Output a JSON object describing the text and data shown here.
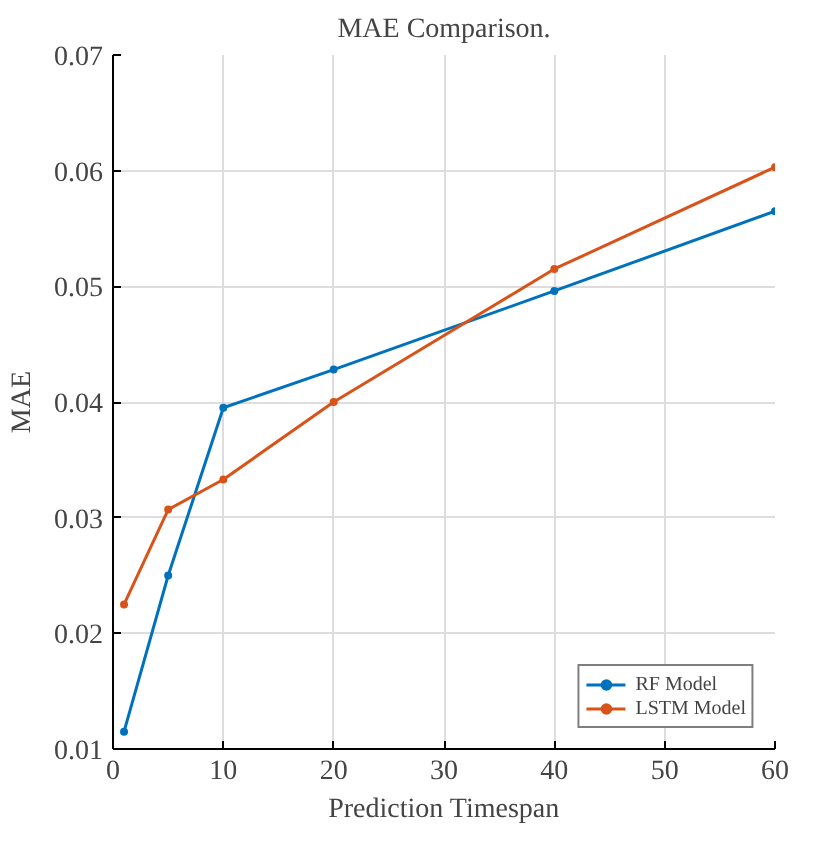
{
  "chart_data": {
    "type": "line",
    "title": "MAE Comparison.",
    "xlabel": "Prediction Timespan",
    "ylabel": "MAE",
    "x": [
      1,
      5,
      10,
      20,
      40,
      60
    ],
    "series": [
      {
        "name": "RF Model",
        "color": "#0072bd",
        "values": [
          0.0115,
          0.025,
          0.0395,
          0.0428,
          0.0496,
          0.0565
        ]
      },
      {
        "name": "LSTM Model",
        "color": "#d95319",
        "values": [
          0.0225,
          0.0307,
          0.0333,
          0.04,
          0.0515,
          0.0603
        ]
      }
    ],
    "xlim": [
      0,
      60
    ],
    "ylim": [
      0.01,
      0.07
    ],
    "xticks": [
      0,
      10,
      20,
      30,
      40,
      50,
      60
    ],
    "yticks": [
      0.01,
      0.02,
      0.03,
      0.04,
      0.05,
      0.06,
      0.07
    ],
    "grid": true,
    "legend": "bottom right",
    "marker": "circle",
    "line_style": "solid"
  }
}
